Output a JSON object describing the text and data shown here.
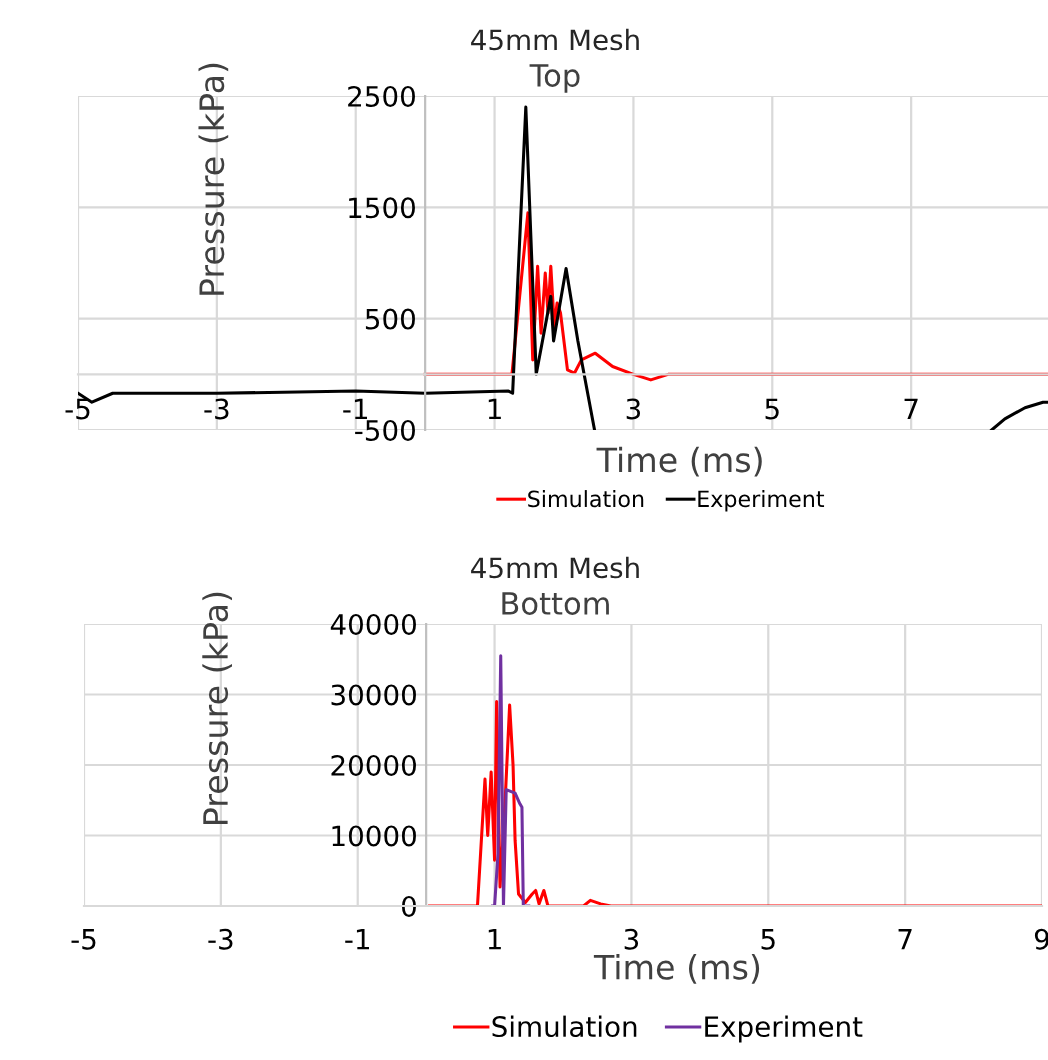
{
  "chart_data": [
    {
      "type": "line",
      "title": "45mm Mesh",
      "subtitle": "Top",
      "xlabel": "Time (ms)",
      "ylabel": "Pressure (kPa)",
      "xlim": [
        -5,
        9
      ],
      "xticks": [
        -5,
        -3,
        -1,
        1,
        3,
        5,
        7
      ],
      "ylim": [
        -500,
        2500
      ],
      "yticks": [
        -500,
        500,
        1500,
        2500
      ],
      "grid": true,
      "legend": "bottom",
      "marker": "none",
      "line_style": "solid",
      "series": [
        {
          "name": "Simulation",
          "color": "#ff0000",
          "x": [
            0,
            1.25,
            1.48,
            1.55,
            1.62,
            1.67,
            1.73,
            1.77,
            1.81,
            1.86,
            1.9,
            1.95,
            2.05,
            2.15,
            2.25,
            2.45,
            2.7,
            3.0,
            3.25,
            3.5,
            9
          ],
          "values": [
            0,
            0,
            1450,
            130,
            970,
            370,
            910,
            550,
            970,
            430,
            640,
            550,
            40,
            10,
            130,
            190,
            70,
            0,
            -50,
            0,
            0
          ]
        },
        {
          "name": "Experiment",
          "color": "#000000",
          "x": [
            -5,
            -4.8,
            -4.5,
            -3,
            -1,
            0,
            1.2,
            1.26,
            1.45,
            1.6,
            1.81,
            1.85,
            2.03,
            2.2,
            2.44,
            null,
            8.16,
            8.35,
            8.64,
            8.9,
            9
          ],
          "values": [
            -170,
            -250,
            -170,
            -170,
            -150,
            -170,
            -150,
            -170,
            2400,
            0,
            700,
            300,
            950,
            300,
            -500,
            null,
            -500,
            -400,
            -300,
            -250,
            -250
          ]
        }
      ]
    },
    {
      "type": "line",
      "title": "45mm Mesh",
      "subtitle": "Bottom",
      "xlabel": "Time (ms)",
      "ylabel": "Pressure (kPa)",
      "xlim": [
        -5,
        9
      ],
      "xticks": [
        -5,
        -3,
        -1,
        1,
        3,
        5,
        7,
        9
      ],
      "ylim": [
        0,
        40000
      ],
      "yticks": [
        0,
        10000,
        20000,
        30000,
        40000
      ],
      "grid": true,
      "legend": "bottom",
      "marker": "none",
      "line_style": "solid",
      "series": [
        {
          "name": "Simulation",
          "color": "#ff0000",
          "x": [
            0.05,
            0.75,
            0.86,
            0.9,
            0.95,
            1.0,
            1.03,
            1.08,
            1.15,
            1.22,
            1.27,
            1.3,
            1.35,
            1.45,
            1.55,
            1.6,
            1.65,
            1.72,
            1.78,
            2.3,
            2.4,
            2.55,
            2.7,
            9
          ],
          "values": [
            0,
            0,
            18000,
            10000,
            19000,
            6500,
            29000,
            2700,
            14000,
            28500,
            20000,
            9300,
            1700,
            500,
            1700,
            2200,
            300,
            2200,
            0,
            0,
            800,
            300,
            0,
            0
          ]
        },
        {
          "name": "Experiment",
          "color": "#7030a0",
          "x": [
            0.97,
            1.0,
            1.05,
            1.09,
            1.13,
            1.17,
            1.3,
            1.37,
            1.4,
            1.42,
            1.5
          ],
          "values": [
            0,
            0,
            7400,
            35500,
            0,
            16500,
            16000,
            14500,
            14000,
            0,
            0
          ]
        }
      ]
    }
  ]
}
